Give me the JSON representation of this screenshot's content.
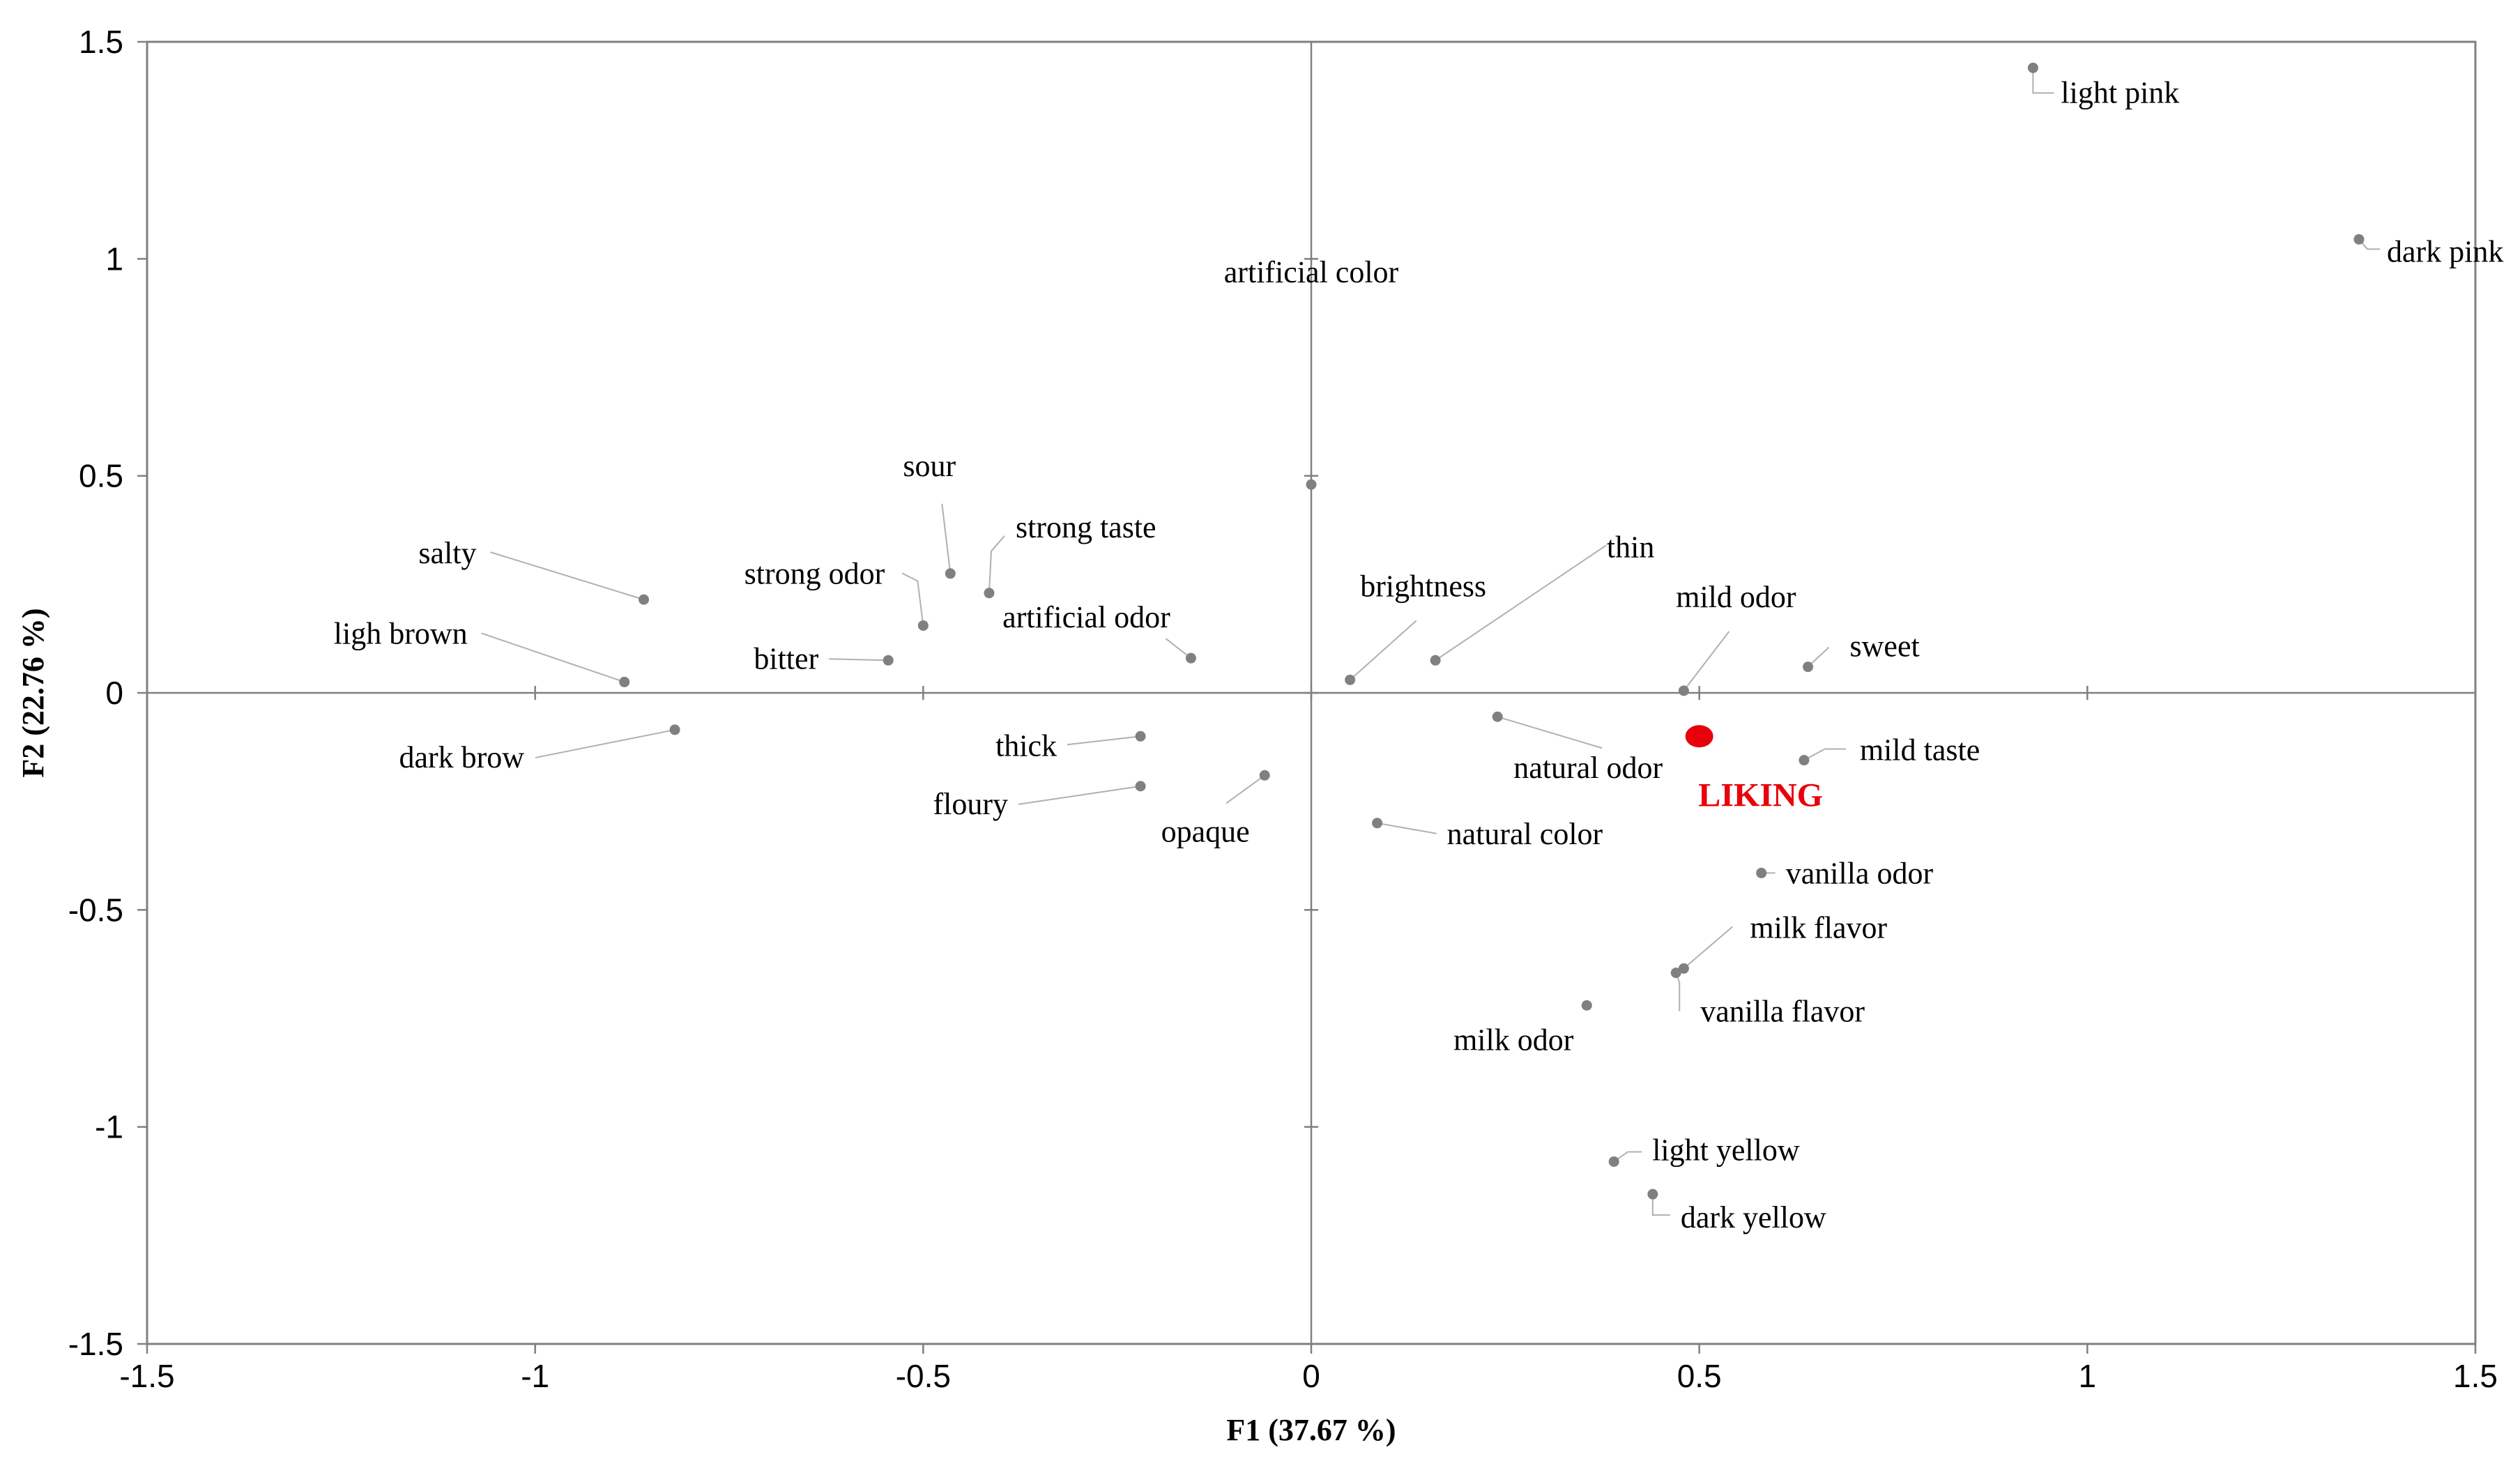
{
  "chart_data": {
    "type": "scatter",
    "xlabel": "F1 (37.67 %)",
    "ylabel": "F2 (22.76 %)",
    "xlim": [
      -1.5,
      1.5
    ],
    "ylim": [
      -1.5,
      1.5
    ],
    "xticks": [
      "-1.5",
      "-1",
      "-0.5",
      "0",
      "0.5",
      "1",
      "1.5"
    ],
    "yticks": [
      "1.5",
      "1",
      "0.5",
      "0",
      "-0.5",
      "-1",
      "-1.5"
    ],
    "grid": false,
    "zero_lines": true,
    "colors": {
      "points": "#808080",
      "leaders": "#b0b0b0",
      "highlight": "#e8000b",
      "axes": "#808080"
    },
    "points": [
      {
        "label": "light pink",
        "x": 0.93,
        "y": 1.44
      },
      {
        "label": "dark pink",
        "x": 1.35,
        "y": 1.045
      },
      {
        "label": "artificial color",
        "x": 0.0,
        "y": 0.48
      },
      {
        "label": "sour",
        "x": -0.465,
        "y": 0.275
      },
      {
        "label": "strong taste",
        "x": -0.415,
        "y": 0.23
      },
      {
        "label": "salty",
        "x": -0.86,
        "y": 0.215
      },
      {
        "label": "strong odor",
        "x": -0.5,
        "y": 0.155
      },
      {
        "label": "ligh brown",
        "x": -0.885,
        "y": 0.025
      },
      {
        "label": "bitter",
        "x": -0.545,
        "y": 0.075
      },
      {
        "label": "artificial odor",
        "x": -0.155,
        "y": 0.08
      },
      {
        "label": "brightness",
        "x": 0.05,
        "y": 0.03
      },
      {
        "label": "thin",
        "x": 0.16,
        "y": 0.075
      },
      {
        "label": "mild odor",
        "x": 0.48,
        "y": 0.005
      },
      {
        "label": "sweet",
        "x": 0.64,
        "y": 0.06
      },
      {
        "label": "dark brow",
        "x": -0.82,
        "y": -0.085
      },
      {
        "label": "thick",
        "x": -0.22,
        "y": -0.1
      },
      {
        "label": "floury",
        "x": -0.22,
        "y": -0.215
      },
      {
        "label": "opaque",
        "x": -0.06,
        "y": -0.19
      },
      {
        "label": "natural odor",
        "x": 0.24,
        "y": -0.055
      },
      {
        "label": "mild taste",
        "x": 0.635,
        "y": -0.155
      },
      {
        "label": "natural color",
        "x": 0.085,
        "y": -0.3
      },
      {
        "label": "vanilla odor",
        "x": 0.58,
        "y": -0.415
      },
      {
        "label": "milk flavor",
        "x": 0.48,
        "y": -0.635
      },
      {
        "label": "vanilla flavor",
        "x": 0.47,
        "y": -0.645
      },
      {
        "label": "milk odor",
        "x": 0.355,
        "y": -0.72
      },
      {
        "label": "light yellow",
        "x": 0.39,
        "y": -1.08
      },
      {
        "label": "dark yellow",
        "x": 0.44,
        "y": -1.155
      }
    ],
    "highlight": {
      "label": "LIKING",
      "x": 0.5,
      "y": -0.1
    }
  }
}
